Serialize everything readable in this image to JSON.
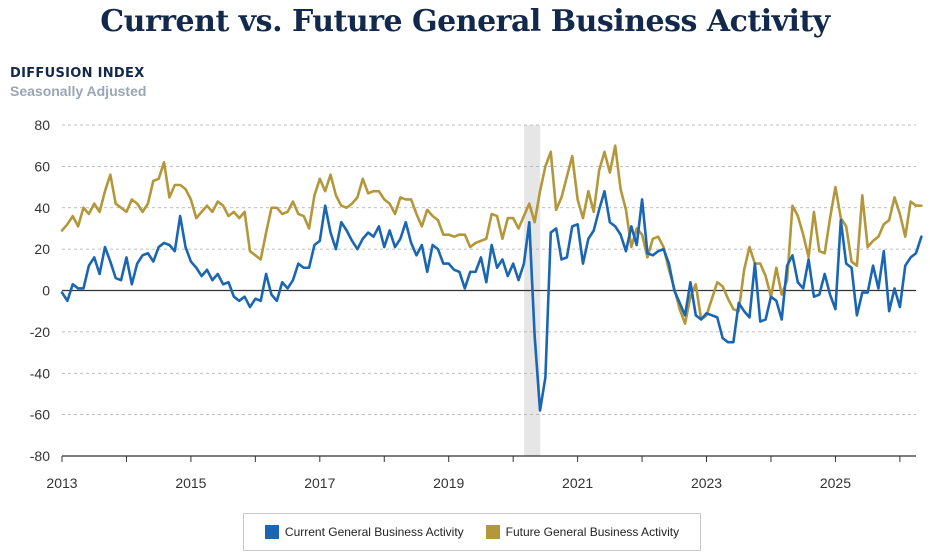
{
  "chart_data": {
    "type": "line",
    "title": "Current vs. Future General Business Activity",
    "ylabel": "DIFFUSION INDEX",
    "subtitle": "Seasonally Adjusted",
    "ylim": [
      -80,
      80
    ],
    "yticks": [
      80,
      60,
      40,
      20,
      0,
      -20,
      -40,
      -60,
      -80
    ],
    "xlim": [
      2013.0,
      2026.25
    ],
    "xticks": [
      "2013",
      "2015",
      "2017",
      "2019",
      "2021",
      "2023",
      "2025"
    ],
    "grid": true,
    "legend_placement": "bottom-center",
    "shaded_period": {
      "start": 2020.17,
      "end": 2020.42
    },
    "colors": {
      "current": "#1a66b3",
      "future": "#b3973a",
      "shade": "#e6e6e6",
      "grid": "#aaaaaa",
      "zero": "#333333"
    },
    "x_start": 2013.0,
    "x_step_months": 1,
    "series": [
      {
        "name": "Current General Business Activity",
        "values": [
          -1,
          -5,
          3,
          1,
          1,
          12,
          16,
          8,
          21,
          14,
          6,
          5,
          16,
          3,
          13,
          17,
          18,
          14,
          21,
          23,
          22,
          19,
          36,
          21,
          14,
          11,
          7,
          10,
          5,
          8,
          3,
          4,
          -3,
          -5,
          -3,
          -8,
          -4,
          -5,
          8,
          -2,
          -5,
          4,
          1,
          5,
          13,
          11,
          11,
          22,
          24,
          41,
          28,
          20,
          33,
          29,
          24,
          20,
          25,
          28,
          26,
          31,
          21,
          29,
          21,
          25,
          33,
          23,
          17,
          22,
          9,
          22,
          20,
          13,
          13,
          10,
          9,
          1,
          9,
          9,
          16,
          4,
          22,
          11,
          15,
          7,
          13,
          5,
          13,
          33,
          -22,
          -58,
          -42,
          28,
          30,
          15,
          16,
          31,
          32,
          13,
          25,
          29,
          39,
          48,
          33,
          31,
          27,
          19,
          31,
          22,
          44,
          18,
          17,
          19,
          20,
          13,
          0,
          -6,
          -12,
          4,
          -12,
          -14,
          -11,
          -12,
          -13,
          -23,
          -25,
          -25,
          -6,
          -10,
          -13,
          13,
          -15,
          -14,
          -3,
          -5,
          -14,
          12,
          17,
          4,
          1,
          15,
          -3,
          -2,
          8,
          -2,
          -9,
          34,
          13,
          11,
          -12,
          -1,
          -1,
          12,
          1,
          19,
          -10,
          1,
          -8,
          12,
          16,
          18,
          26
        ]
      },
      {
        "name": "Future General Business Activity",
        "values": [
          29,
          32,
          36,
          31,
          40,
          37,
          42,
          38,
          48,
          56,
          42,
          40,
          38,
          44,
          42,
          38,
          42,
          53,
          54,
          62,
          45,
          51,
          51,
          49,
          44,
          35,
          38,
          41,
          38,
          43,
          41,
          36,
          38,
          35,
          38,
          19,
          17,
          15,
          28,
          40,
          40,
          37,
          38,
          43,
          37,
          36,
          30,
          46,
          54,
          48,
          56,
          46,
          41,
          40,
          42,
          45,
          54,
          47,
          48,
          48,
          44,
          42,
          37,
          45,
          44,
          44,
          37,
          31,
          39,
          36,
          34,
          27,
          27,
          26,
          27,
          27,
          21,
          23,
          24,
          25,
          37,
          36,
          25,
          35,
          35,
          30,
          36,
          42,
          33,
          48,
          60,
          67,
          39,
          45,
          55,
          65,
          44,
          35,
          48,
          38,
          58,
          67,
          57,
          70,
          49,
          39,
          21,
          30,
          27,
          16,
          25,
          26,
          21,
          10,
          1,
          -9,
          -16,
          -3,
          3,
          -14,
          -12,
          -4,
          4,
          2,
          -4,
          -9,
          -10,
          10,
          21,
          13,
          13,
          7,
          -3,
          11,
          -2,
          5,
          41,
          36,
          27,
          16,
          38,
          19,
          18,
          35,
          50,
          35,
          31,
          14,
          12,
          46,
          21,
          24,
          26,
          32,
          34,
          45,
          37,
          26,
          43,
          41,
          41
        ]
      }
    ]
  }
}
